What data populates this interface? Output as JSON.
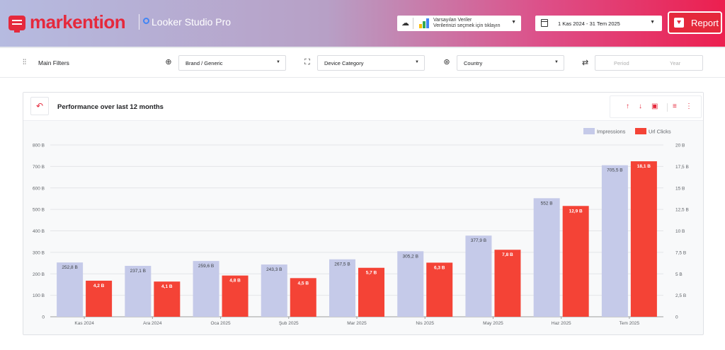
{
  "header": {
    "brand_name": "markention",
    "product_name": "Looker Studio Pro",
    "data_source": {
      "title": "Varsayılan Veriler",
      "subtitle": "Verilerinizi seçmek için tıklayın"
    },
    "date_range": "1 Kas 2024 - 31 Tem 2025",
    "report_button": "Report"
  },
  "filters": {
    "main_label": "Main Filters",
    "brand": "Brand / Generic",
    "device": "Device Category",
    "country": "Country",
    "period_options": [
      "Period",
      "Year"
    ]
  },
  "card": {
    "title": "Performance over last 12 months"
  },
  "colors": {
    "brand_red": "#e5293c",
    "impressions": "#c5cae9",
    "clicks": "#f44336"
  },
  "chart_data": {
    "type": "bar",
    "categories": [
      "Kas 2024",
      "Ara 2024",
      "Oca 2025",
      "Şub 2025",
      "Mar 2025",
      "Nis 2025",
      "May 2025",
      "Haz 2025",
      "Tem 2025"
    ],
    "series": [
      {
        "name": "Impressions",
        "axis": "left",
        "values": [
          252.8,
          237.1,
          259.6,
          243.3,
          267.5,
          305.2,
          377.9,
          552,
          705.5
        ],
        "labels": [
          "252,8 B",
          "237,1 B",
          "259,6 B",
          "243,3 B",
          "267,5 B",
          "305,2 B",
          "377,9 B",
          "552 B",
          "705,5 B"
        ]
      },
      {
        "name": "Url Clicks",
        "axis": "right",
        "values": [
          4.2,
          4.1,
          4.8,
          4.5,
          5.7,
          6.3,
          7.8,
          12.9,
          18.1
        ],
        "labels": [
          "4,2 B",
          "4,1 B",
          "4,8 B",
          "4,5 B",
          "5,7 B",
          "6,3 B",
          "7,8 B",
          "12,9 B",
          "18,1 B"
        ]
      }
    ],
    "y_left": {
      "ylim": [
        0,
        800
      ],
      "ticks": [
        "0",
        "100 B",
        "200 B",
        "300 B",
        "400 B",
        "500 B",
        "600 B",
        "700 B",
        "800 B"
      ]
    },
    "y_right": {
      "ylim": [
        0,
        20
      ],
      "ticks": [
        "0",
        "2,5 B",
        "5 B",
        "7,5 B",
        "10 B",
        "12,5 B",
        "15 B",
        "17,5 B",
        "20 B"
      ]
    },
    "grid": true,
    "legend_position": "top-right"
  }
}
